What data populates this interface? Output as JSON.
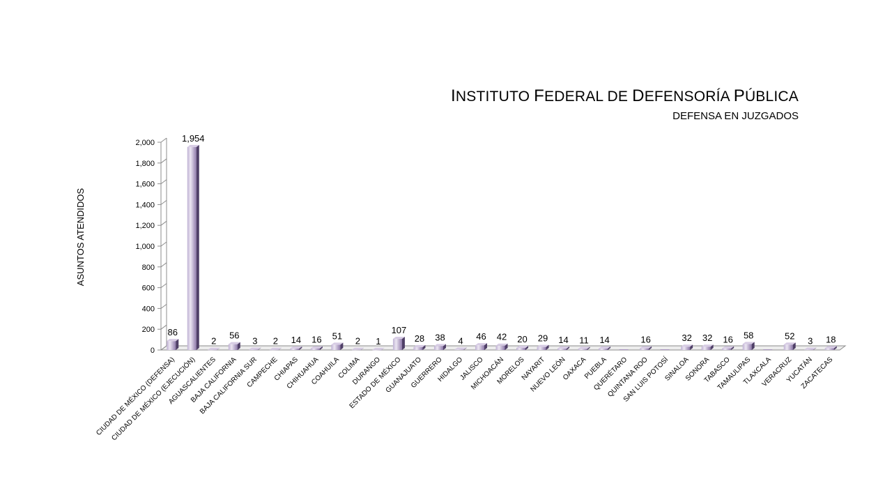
{
  "header": {
    "title_parts": [
      {
        "big": "I",
        "small": "NSTITUTO "
      },
      {
        "big": "F",
        "small": "EDERAL DE "
      },
      {
        "big": "D",
        "small": "EFENSORÍA "
      },
      {
        "big": "P",
        "small": "ÚBLICA"
      }
    ],
    "subtitle": "DEFENSA EN JUZGADOS"
  },
  "colors": {
    "bar_front": "#a895bf",
    "bar_light": "#ece6f2",
    "bar_dark": "#4f3f67",
    "bar_top": "#d7cce4",
    "axis": "#8c8c8c"
  },
  "chart_data": {
    "type": "bar",
    "title": "INSTITUTO FEDERAL DE DEFENSORÍA PÚBLICA",
    "subtitle": "DEFENSA EN JUZGADOS",
    "xlabel": "",
    "ylabel": "ASUNTOS ATENDIDOS",
    "ylim": [
      0,
      2000
    ],
    "yticks": [
      0,
      200,
      400,
      600,
      800,
      1000,
      1200,
      1400,
      1600,
      1800,
      2000
    ],
    "ytick_labels": [
      "0",
      "200",
      "400",
      "600",
      "800",
      "1,000",
      "1,200",
      "1,400",
      "1,600",
      "1,800",
      "2,000"
    ],
    "grid": false,
    "legend": "none",
    "categories": [
      "CIUDAD DE MÉXICO   (DEFENSA)",
      "CIUDAD DE MÉXICO   (EJECUCIÓN)",
      "AGUASCALIENTES",
      "BAJA CALIFORNIA",
      "BAJA CALIFORNIA SUR",
      "CAMPECHE",
      "CHIAPAS",
      "CHIHUAHUA",
      "COAHUILA",
      "COLIMA",
      "DURANGO",
      "ESTADO DE MÉXICO",
      "GUANAJUATO",
      "GUERRERO",
      "HIDALGO",
      "JALISCO",
      "MICHOACÁN",
      "MORELOS",
      "NAYARIT",
      "NUEVO LEÓN",
      "OAXACA",
      "PUEBLA",
      "QUERÉTARO",
      "QUINTANA ROO",
      "SAN LUIS POTOSÍ",
      "SINALOA",
      "SONORA",
      "TABASCO",
      "TAMAULIPAS",
      "TLAXCALA",
      "VERACRUZ",
      "YUCATÁN",
      "ZACATECAS"
    ],
    "values": [
      86,
      1954,
      2,
      56,
      3,
      2,
      14,
      16,
      51,
      2,
      1,
      107,
      28,
      38,
      4,
      46,
      42,
      20,
      29,
      14,
      11,
      14,
      0,
      16,
      0,
      32,
      32,
      16,
      58,
      0,
      52,
      3,
      18
    ],
    "value_labels": [
      "86",
      "1,954",
      "2",
      "56",
      "3",
      "2",
      "14",
      "16",
      "51",
      "2",
      "1",
      "107",
      "28",
      "38",
      "4",
      "46",
      "42",
      "20",
      "29",
      "14",
      "11",
      "14",
      "",
      "16",
      "",
      "32",
      "32",
      "16",
      "58",
      "",
      "52",
      "3",
      "18"
    ]
  }
}
